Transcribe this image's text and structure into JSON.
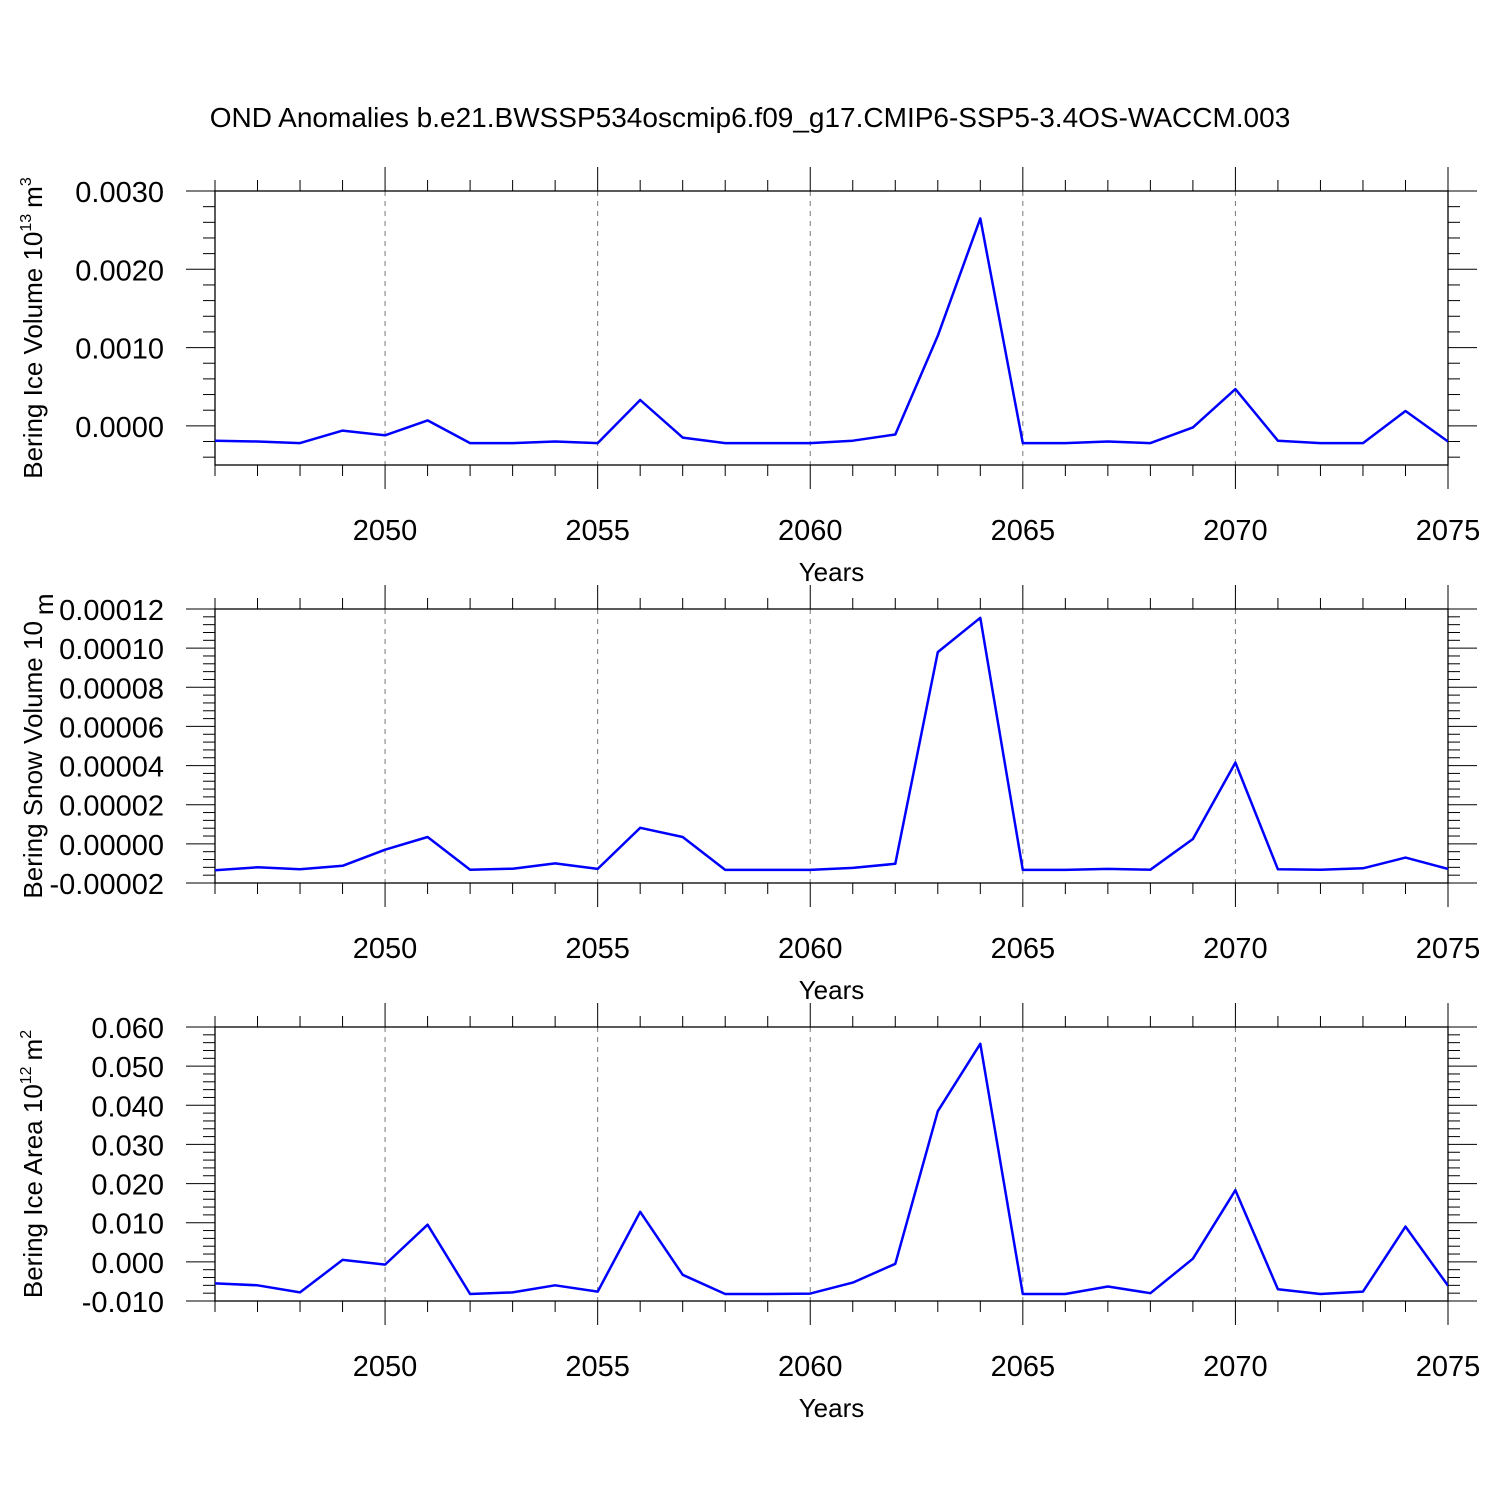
{
  "figure": {
    "title": "OND Anomalies b.e21.BWSSP534oscmip6.f09_g17.CMIP6-SSP5-3.4OS-WACCM.003",
    "line_color": "#0000ff"
  },
  "chart_data": [
    {
      "type": "line",
      "xlabel": "Years",
      "ylabel": "Bering Ice Volume 10",
      "ylabel_exp": "13",
      "ylabel_unit": "m",
      "ylabel_unit_exp": "3",
      "xlim": [
        2046,
        2075
      ],
      "ylim": [
        -0.0005,
        0.003
      ],
      "x_ticks": [
        2050,
        2055,
        2060,
        2065,
        2070,
        2075
      ],
      "y_ticks": [
        0.0,
        0.001,
        0.002,
        0.003
      ],
      "y_tick_labels": [
        "0.0000",
        "0.0010",
        "0.0020",
        "0.0030"
      ],
      "grid": "vertical dashed at major x ticks",
      "x": [
        2046,
        2047,
        2048,
        2049,
        2050,
        2051,
        2052,
        2053,
        2054,
        2055,
        2056,
        2057,
        2058,
        2059,
        2060,
        2061,
        2062,
        2063,
        2064,
        2065,
        2066,
        2067,
        2068,
        2069,
        2070,
        2071,
        2072,
        2073,
        2074,
        2075
      ],
      "values": [
        -0.00019,
        -0.0002,
        -0.00022,
        -6e-05,
        -0.00012,
        7e-05,
        -0.00022,
        -0.00022,
        -0.0002,
        -0.00022,
        0.00033,
        -0.00015,
        -0.00022,
        -0.00022,
        -0.00022,
        -0.00019,
        -0.00011,
        0.00115,
        0.00265,
        -0.00022,
        -0.00022,
        -0.0002,
        -0.00022,
        -2e-05,
        0.00047,
        -0.00019,
        -0.00022,
        -0.00022,
        0.00019,
        -0.0002
      ]
    },
    {
      "type": "line",
      "xlabel": "Years",
      "ylabel": "Bering Snow Volume 10",
      "ylabel_exp": "",
      "ylabel_unit": "m",
      "ylabel_unit_exp": "",
      "xlim": [
        2046,
        2075
      ],
      "ylim": [
        -2e-05,
        0.00012
      ],
      "x_ticks": [
        2050,
        2055,
        2060,
        2065,
        2070,
        2075
      ],
      "y_ticks": [
        -2e-05,
        0.0,
        2e-05,
        4e-05,
        6e-05,
        8e-05,
        0.0001,
        0.00012
      ],
      "y_tick_labels": [
        "-0.00002",
        "0.00000",
        "0.00002",
        "0.00004",
        "0.00006",
        "0.00008",
        "0.00010",
        "0.00012"
      ],
      "grid": "vertical dashed at major x ticks",
      "x": [
        2046,
        2047,
        2048,
        2049,
        2050,
        2051,
        2052,
        2053,
        2054,
        2055,
        2056,
        2057,
        2058,
        2059,
        2060,
        2061,
        2062,
        2063,
        2064,
        2065,
        2066,
        2067,
        2068,
        2069,
        2070,
        2071,
        2072,
        2073,
        2074,
        2075
      ],
      "values": [
        -1.35e-05,
        -1.2e-05,
        -1.3e-05,
        -1.12e-05,
        -3e-06,
        3.5e-06,
        -1.32e-05,
        -1.27e-05,
        -1e-05,
        -1.28e-05,
        8.2e-06,
        3.5e-06,
        -1.33e-05,
        -1.33e-05,
        -1.33e-05,
        -1.23e-05,
        -1.02e-05,
        9.8e-05,
        0.0001155,
        -1.33e-05,
        -1.33e-05,
        -1.28e-05,
        -1.32e-05,
        2.5e-06,
        4.15e-05,
        -1.3e-05,
        -1.32e-05,
        -1.25e-05,
        -7e-06,
        -1.28e-05
      ]
    },
    {
      "type": "line",
      "xlabel": "Years",
      "ylabel": "Bering Ice Area 10",
      "ylabel_exp": "12",
      "ylabel_unit": "m",
      "ylabel_unit_exp": "2",
      "xlim": [
        2046,
        2075
      ],
      "ylim": [
        -0.01,
        0.06
      ],
      "x_ticks": [
        2050,
        2055,
        2060,
        2065,
        2070,
        2075
      ],
      "y_ticks": [
        -0.01,
        0.0,
        0.01,
        0.02,
        0.03,
        0.04,
        0.05,
        0.06
      ],
      "y_tick_labels": [
        "-0.010",
        "0.000",
        "0.010",
        "0.020",
        "0.030",
        "0.040",
        "0.050",
        "0.060"
      ],
      "grid": "vertical dashed at major x ticks",
      "x": [
        2046,
        2047,
        2048,
        2049,
        2050,
        2051,
        2052,
        2053,
        2054,
        2055,
        2056,
        2057,
        2058,
        2059,
        2060,
        2061,
        2062,
        2063,
        2064,
        2065,
        2066,
        2067,
        2068,
        2069,
        2070,
        2071,
        2072,
        2073,
        2074,
        2075
      ],
      "values": [
        -0.0055,
        -0.006,
        -0.0078,
        0.0005,
        -0.0007,
        0.0095,
        -0.0082,
        -0.0078,
        -0.006,
        -0.0076,
        0.0128,
        -0.0033,
        -0.0082,
        -0.0082,
        -0.0081,
        -0.0053,
        -0.0005,
        0.0385,
        0.0557,
        -0.0082,
        -0.0082,
        -0.0063,
        -0.008,
        0.0008,
        0.0183,
        -0.007,
        -0.0082,
        -0.0076,
        0.009,
        -0.0061
      ]
    }
  ]
}
